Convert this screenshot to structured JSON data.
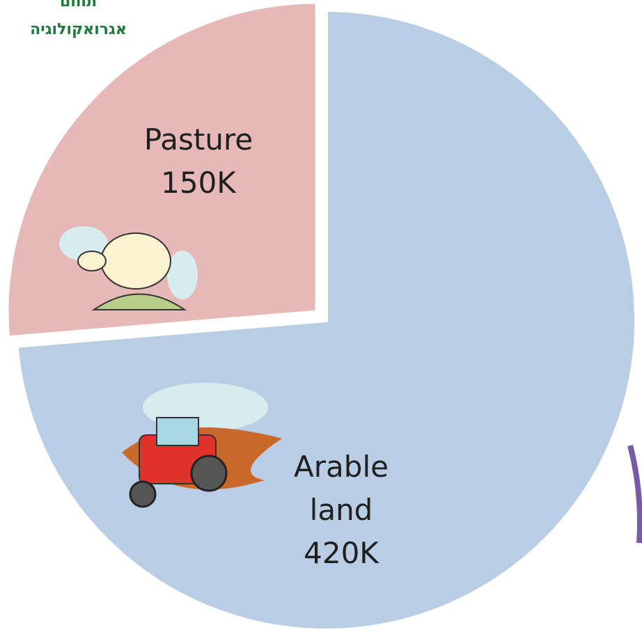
{
  "chart_data": {
    "type": "pie",
    "annotations": [
      "תחום",
      "אגרואקולוגיה"
    ],
    "categories": [
      "Pasture",
      "Arable land"
    ],
    "values": [
      150000,
      420000
    ],
    "value_labels": [
      "150K",
      "420K"
    ],
    "colors": [
      "#e6b8b7",
      "#b9cde5"
    ]
  }
}
